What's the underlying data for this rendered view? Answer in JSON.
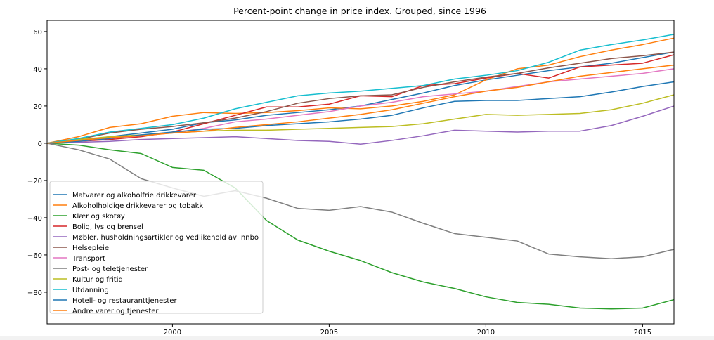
{
  "chart_data": {
    "type": "line",
    "title": "Percent-point change in price index. Grouped, since 1996",
    "xlabel": "",
    "ylabel": "",
    "xlim": [
      1996,
      2016
    ],
    "ylim": [
      -97,
      66
    ],
    "x_ticks": [
      2000,
      2005,
      2010,
      2015
    ],
    "y_ticks": [
      -80,
      -60,
      -40,
      -20,
      0,
      20,
      40,
      60
    ],
    "grid": false,
    "legend_position": "lower-left",
    "x": [
      1996,
      1997,
      1998,
      1999,
      2000,
      2001,
      2002,
      2003,
      2004,
      2005,
      2006,
      2007,
      2008,
      2009,
      2010,
      2011,
      2012,
      2013,
      2014,
      2015,
      2016
    ],
    "series": [
      {
        "name": "Matvarer og alkoholfrie drikkevarer",
        "color": "#1f77b4",
        "values": [
          0,
          1.5,
          3.5,
          5.5,
          7.5,
          11,
          12.5,
          15,
          16.5,
          18,
          20,
          23.5,
          27,
          31,
          34,
          36.5,
          39,
          41,
          43,
          46,
          49
        ]
      },
      {
        "name": "Alkoholholdige drikkevarer og tobakk",
        "color": "#ff7f0e",
        "values": [
          0,
          3.5,
          8.5,
          10.5,
          14.5,
          16.5,
          16,
          16.5,
          17.5,
          19,
          18.5,
          20,
          22.5,
          26,
          34,
          40,
          42,
          46.5,
          50,
          53,
          56.5
        ]
      },
      {
        "name": "Klær og skotøy",
        "color": "#2ca02c",
        "values": [
          0,
          -1,
          -3.5,
          -5.5,
          -13,
          -14.5,
          -24,
          -41.5,
          -52,
          -58,
          -63,
          -69.5,
          -74.5,
          -78,
          -82.5,
          -85.5,
          -86.5,
          -88.5,
          -89,
          -88.5,
          -84
        ]
      },
      {
        "name": "Bolig, lys og brensel",
        "color": "#d62728",
        "values": [
          0,
          1,
          2,
          3.5,
          6,
          10.5,
          15,
          19.5,
          19.5,
          21,
          25.5,
          25,
          31,
          32,
          35,
          37.5,
          35,
          41,
          42,
          43,
          47.5
        ]
      },
      {
        "name": "Møbler, husholdningsartikler og vedlikehold av innbo",
        "color": "#9467bd",
        "values": [
          0,
          0.5,
          1,
          2,
          2.5,
          3,
          3.5,
          2.5,
          1.5,
          1,
          -0.5,
          1.5,
          4,
          7,
          6.5,
          6,
          6.5,
          6.5,
          9.5,
          14.5,
          20
        ]
      },
      {
        "name": "Helsepleie",
        "color": "#8c564b",
        "values": [
          0,
          2,
          5.5,
          7.5,
          9,
          11,
          13.5,
          17,
          21.5,
          24,
          25.5,
          26,
          30,
          33,
          35.5,
          37.5,
          40.5,
          43,
          45.5,
          47,
          49
        ]
      },
      {
        "name": "Transport",
        "color": "#e377c2",
        "values": [
          0,
          1,
          2.5,
          4,
          5.5,
          8,
          11.5,
          13,
          15,
          17,
          20,
          22,
          25,
          26.5,
          28,
          30.5,
          33,
          34.5,
          36,
          37.5,
          40
        ]
      },
      {
        "name": "Post- og teletjenester",
        "color": "#7f7f7f",
        "values": [
          0,
          -3.5,
          -8.5,
          -19,
          -24,
          -28.5,
          -25.5,
          -29.5,
          -35,
          -36,
          -34,
          -37,
          -43,
          -48.5,
          -50.5,
          -52.5,
          -59.5,
          -61,
          -62,
          -61,
          -57
        ]
      },
      {
        "name": "Kultur og fritid",
        "color": "#bcbd22",
        "values": [
          0,
          2,
          3.5,
          4.5,
          5.5,
          6.5,
          7,
          7,
          7.5,
          8,
          8.5,
          9,
          10.5,
          13,
          15.5,
          15,
          15.5,
          16,
          18,
          21.5,
          26
        ]
      },
      {
        "name": "Utdanning",
        "color": "#17becf",
        "values": [
          0,
          2.5,
          6,
          8,
          10,
          13.5,
          18.5,
          22,
          25.5,
          27,
          28,
          29.5,
          31,
          34.5,
          36.5,
          39,
          43.5,
          50,
          53,
          55.5,
          58.5
        ]
      },
      {
        "name": "Hotell- og restauranttjenester",
        "color": "#1f77b4",
        "values": [
          0,
          1,
          2.5,
          4.5,
          6,
          7.5,
          8,
          9.5,
          10.5,
          11.5,
          13,
          15,
          19,
          22.5,
          23,
          23,
          24,
          25,
          27.5,
          30.5,
          33
        ]
      },
      {
        "name": "Andre varer og tjenester",
        "color": "#ff7f0e",
        "values": [
          0,
          1.5,
          3,
          4,
          5.5,
          6.5,
          8.5,
          10,
          11.5,
          13.5,
          15.5,
          18,
          21.5,
          25,
          28,
          30,
          33,
          36,
          38,
          40,
          42
        ]
      }
    ]
  }
}
